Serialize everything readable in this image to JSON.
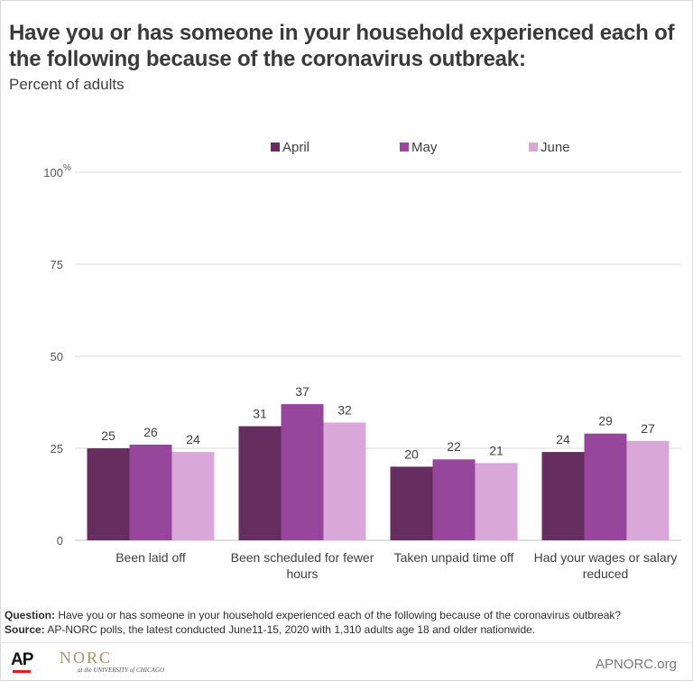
{
  "header": {
    "title": "Have you or has someone in your household experienced each of the following because of the coronavirus outbreak:",
    "subtitle": "Percent of adults"
  },
  "chart_data": {
    "type": "bar",
    "categories": [
      "Been laid off",
      "Been scheduled for fewer hours",
      "Taken unpaid time off",
      "Had your wages or salary reduced"
    ],
    "category_lines": [
      [
        "Been laid off"
      ],
      [
        "Been scheduled for fewer",
        "hours"
      ],
      [
        "Taken unpaid time off"
      ],
      [
        "Had your wages or salary",
        "reduced"
      ]
    ],
    "series": [
      {
        "name": "April",
        "values": [
          25,
          31,
          20,
          24
        ],
        "color": "#652e5e"
      },
      {
        "name": "May",
        "values": [
          26,
          37,
          22,
          29
        ],
        "color": "#97479b"
      },
      {
        "name": "June",
        "values": [
          24,
          32,
          21,
          27
        ],
        "color": "#d9a8d8"
      }
    ],
    "yticks": [
      "0",
      "25",
      "50",
      "75",
      "100"
    ],
    "ytick_values": [
      0,
      25,
      50,
      75,
      100
    ],
    "y_unit": "%",
    "ylim": [
      0,
      100
    ],
    "grid": true,
    "legend_position": "top-center",
    "data_labels": true
  },
  "notes": {
    "question_label": "Question:",
    "question_text": "Have you or has someone in your household experienced each of the following because of the coronavirus  outbreak?",
    "source_label": "Source:",
    "source_text": "AP-NORC polls, the latest conducted  June11-15,  2020 with 1,310 adults age 18 and older nationwide."
  },
  "footer": {
    "ap_logo": "AP",
    "norc_logo": "NORC",
    "norc_sub": "at the UNIVERSITY of CHICAGO",
    "site": "APNORC.org"
  }
}
